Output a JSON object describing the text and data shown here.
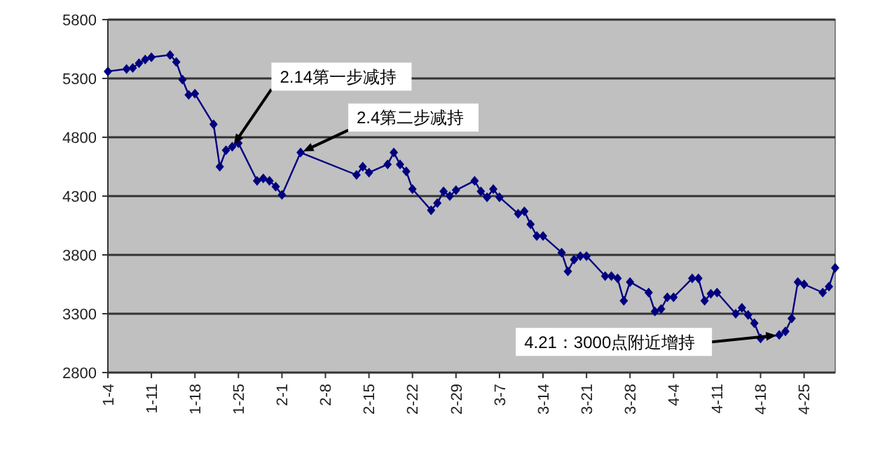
{
  "chart_data": {
    "type": "line",
    "marker": "diamond",
    "grid": "y",
    "x": [
      "--01-04",
      "--01-07",
      "--01-08",
      "--01-09",
      "--01-10",
      "--01-11",
      "--01-14",
      "--01-15",
      "--01-16",
      "--01-17",
      "--01-18",
      "--01-21",
      "--01-22",
      "--01-23",
      "--01-24",
      "--01-25",
      "--01-28",
      "--01-29",
      "--01-30",
      "--01-31",
      "--02-01",
      "--02-04",
      "--02-13",
      "--02-14",
      "--02-15",
      "--02-18",
      "--02-19",
      "--02-20",
      "--02-21",
      "--02-22",
      "--02-25",
      "--02-26",
      "--02-27",
      "--02-28",
      "--02-29",
      "--03-03",
      "--03-04",
      "--03-05",
      "--03-06",
      "--03-07",
      "--03-10",
      "--03-11",
      "--03-12",
      "--03-13",
      "--03-14",
      "--03-17",
      "--03-18",
      "--03-19",
      "--03-20",
      "--03-21",
      "--03-24",
      "--03-25",
      "--03-26",
      "--03-27",
      "--03-28",
      "--03-31",
      "--04-01",
      "--04-02",
      "--04-03",
      "--04-04",
      "--04-07",
      "--04-08",
      "--04-09",
      "--04-10",
      "--04-11",
      "--04-14",
      "--04-15",
      "--04-16",
      "--04-17",
      "--04-18",
      "--04-21",
      "--04-22",
      "--04-23",
      "--04-24",
      "--04-25",
      "--04-28",
      "--04-29",
      "--04-30"
    ],
    "series": [
      {
        "color": "#000080",
        "values": [
          5360,
          5380,
          5390,
          5430,
          5460,
          5480,
          5500,
          5440,
          5290,
          5160,
          5170,
          4910,
          4550,
          4690,
          4720,
          4750,
          4430,
          4450,
          4430,
          4380,
          4310,
          4670,
          4480,
          4550,
          4500,
          4570,
          4670,
          4570,
          4510,
          4360,
          4180,
          4240,
          4340,
          4300,
          4350,
          4430,
          4340,
          4290,
          4360,
          4290,
          4150,
          4170,
          4060,
          3960,
          3960,
          3820,
          3660,
          3760,
          3790,
          3790,
          3620,
          3620,
          3600,
          3410,
          3570,
          3480,
          3320,
          3340,
          3440,
          3440,
          3600,
          3600,
          3410,
          3470,
          3480,
          3300,
          3350,
          3290,
          3220,
          3090,
          3120,
          3150,
          3260,
          3570,
          3550,
          3480,
          3530,
          3690
        ]
      }
    ],
    "xlim": [
      "--01-04",
      "--04-30"
    ],
    "xticks": [
      {
        "value": "--01-04",
        "label": "1-4"
      },
      {
        "value": "--01-11",
        "label": "1-11"
      },
      {
        "value": "--01-18",
        "label": "1-18"
      },
      {
        "value": "--01-25",
        "label": "1-25"
      },
      {
        "value": "--02-01",
        "label": "2-1"
      },
      {
        "value": "--02-08",
        "label": "2-8"
      },
      {
        "value": "--02-15",
        "label": "2-15"
      },
      {
        "value": "--02-22",
        "label": "2-22"
      },
      {
        "value": "--02-29",
        "label": "2-29"
      },
      {
        "value": "--03-07",
        "label": "3-7"
      },
      {
        "value": "--03-14",
        "label": "3-14"
      },
      {
        "value": "--03-21",
        "label": "3-21"
      },
      {
        "value": "--03-28",
        "label": "3-28"
      },
      {
        "value": "--04-04",
        "label": "4-4"
      },
      {
        "value": "--04-11",
        "label": "4-11"
      },
      {
        "value": "--04-18",
        "label": "4-18"
      },
      {
        "value": "--04-25",
        "label": "4-25"
      }
    ],
    "ylim": [
      2800,
      5800
    ],
    "yticks": [
      2800,
      3300,
      3800,
      4300,
      4800,
      5300,
      5800
    ],
    "annotations": [
      {
        "text": "2.14第一步减持",
        "x": "--01-24",
        "y": 4720
      },
      {
        "text": "2.4第二步减持",
        "x": "--02-04",
        "y": 4670
      },
      {
        "text": "4.21：3000点附近增持",
        "x": "--04-21",
        "y": 3120
      }
    ]
  }
}
